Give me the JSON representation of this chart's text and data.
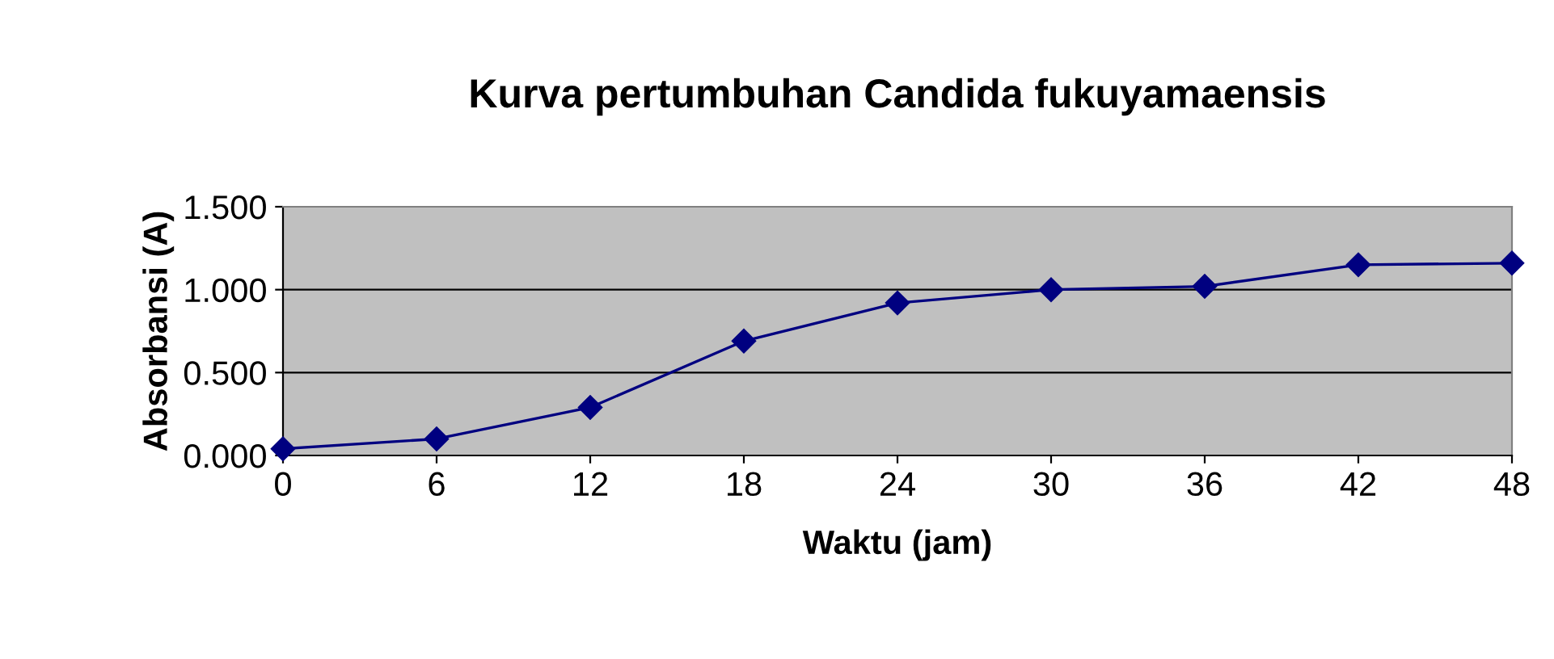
{
  "chart_data": {
    "type": "line",
    "title": "Kurva pertumbuhan Candida fukuyamaensis",
    "xlabel": "Waktu (jam)",
    "ylabel": "Absorbansi (A)",
    "x": [
      0,
      6,
      12,
      18,
      24,
      30,
      36,
      42,
      48
    ],
    "series": [
      {
        "color": "#000080",
        "values": [
          0.04,
          0.1,
          0.29,
          0.69,
          0.92,
          1.0,
          1.02,
          1.15,
          1.16
        ]
      }
    ],
    "xlim": [
      0,
      48
    ],
    "xticks": [
      0,
      6,
      12,
      18,
      24,
      30,
      36,
      42,
      48
    ],
    "ylim": [
      0,
      1.5
    ],
    "yticks": [
      {
        "value": 0,
        "label": "0.000"
      },
      {
        "value": 0.5,
        "label": "0.500"
      },
      {
        "value": 1.0,
        "label": "1.000"
      },
      {
        "value": 1.5,
        "label": "1.500"
      }
    ],
    "grid": "y",
    "marker": "diamond",
    "line_style": "solid"
  }
}
